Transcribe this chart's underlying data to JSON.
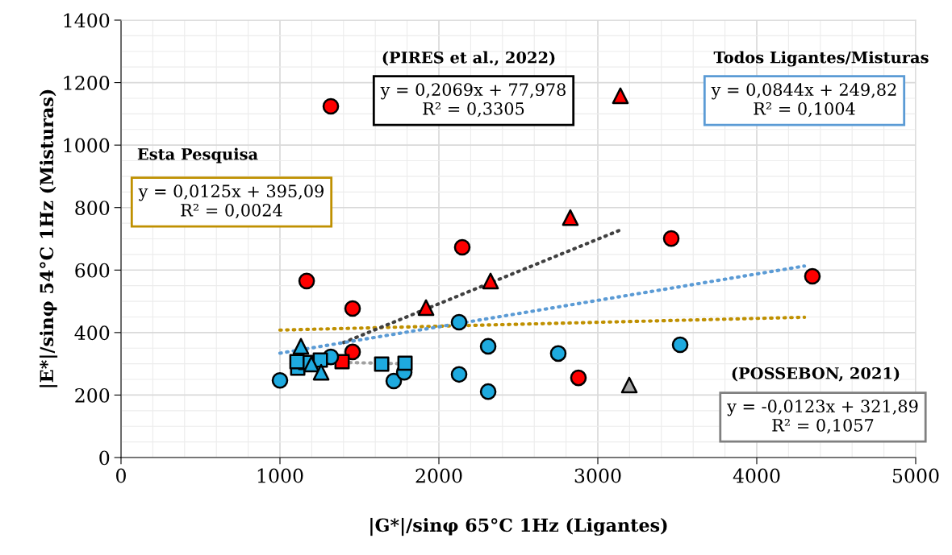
{
  "chart_data": {
    "type": "scatter",
    "xlabel": "|G*|/sinφ 65°C 1Hz (Ligantes)",
    "ylabel": "|E*|/sinφ 54°C 1Hz (Misturas)",
    "xlim": [
      0,
      5000
    ],
    "xticks": [
      0,
      1000,
      2000,
      3000,
      4000,
      5000
    ],
    "ylim": [
      0,
      1400
    ],
    "yticks": [
      0,
      200,
      400,
      600,
      800,
      1000,
      1200,
      1400
    ],
    "grid": true,
    "legend": false,
    "series": [
      {
        "color": "#ff0000",
        "marker": "circle",
        "x": [
          1320,
          1168,
          1457,
          2147,
          3462,
          4350,
          2878,
          1457
        ],
        "values": [
          1124,
          565,
          477,
          673,
          701,
          580,
          255,
          338
        ]
      },
      {
        "color": "#ff0000",
        "marker": "triangle",
        "x": [
          3142,
          2827,
          2325,
          1919
        ],
        "values": [
          1158,
          768,
          565,
          480
        ]
      },
      {
        "color": "#ff0000",
        "marker": "square",
        "x": [
          1391
        ],
        "values": [
          307
        ]
      },
      {
        "color": "#1eaadf",
        "marker": "circle",
        "x": [
          1000,
          2127,
          2310,
          2310,
          2751,
          1716,
          1782,
          1320,
          2127,
          3518
        ],
        "values": [
          247,
          266,
          356,
          211,
          333,
          245,
          273,
          322,
          433,
          361
        ]
      },
      {
        "color": "#1eaadf",
        "marker": "square",
        "x": [
          1112,
          1162,
          1254,
          1640,
          1787,
          1107
        ],
        "values": [
          286,
          304,
          312,
          299,
          302,
          307
        ]
      },
      {
        "color": "#1eaadf",
        "marker": "triangle",
        "x": [
          1132,
          1198,
          1259
        ],
        "values": [
          356,
          299,
          273
        ]
      },
      {
        "color": "#a6a6a6",
        "marker": "triangle",
        "x": [
          3198
        ],
        "values": [
          232
        ]
      },
      {
        "type": "line",
        "line_style": "dotted",
        "color": "#bf9000",
        "x": [
          1000,
          4300
        ],
        "values": [
          408,
          449
        ]
      },
      {
        "type": "line",
        "line_style": "dotted",
        "color": "#404040",
        "x": [
          1400,
          3150
        ],
        "values": [
          368,
          730
        ]
      },
      {
        "type": "line",
        "line_style": "dotted",
        "color": "#5b9bd5",
        "x": [
          1000,
          4300
        ],
        "values": [
          334,
          613
        ]
      },
      {
        "type": "line",
        "line_style": "dotted",
        "color": "#a0a0a0",
        "x": [
          1100,
          1780
        ],
        "values": [
          308,
          300
        ]
      }
    ],
    "annotations": [
      "Esta Pesquisa",
      "y = 0,0125x + 395,09\nR² = 0,0024",
      "(PIRES et al., 2022)",
      "y = 0,2069x + 77,978\nR² = 0,3305",
      "Todos Ligantes/Misturas",
      "y = 0,0844x + 249,82\nR² = 0,1004",
      "(POSSEBON, 2021)",
      "y = -0,0123x + 321,89\nR² = 0,1057"
    ]
  }
}
